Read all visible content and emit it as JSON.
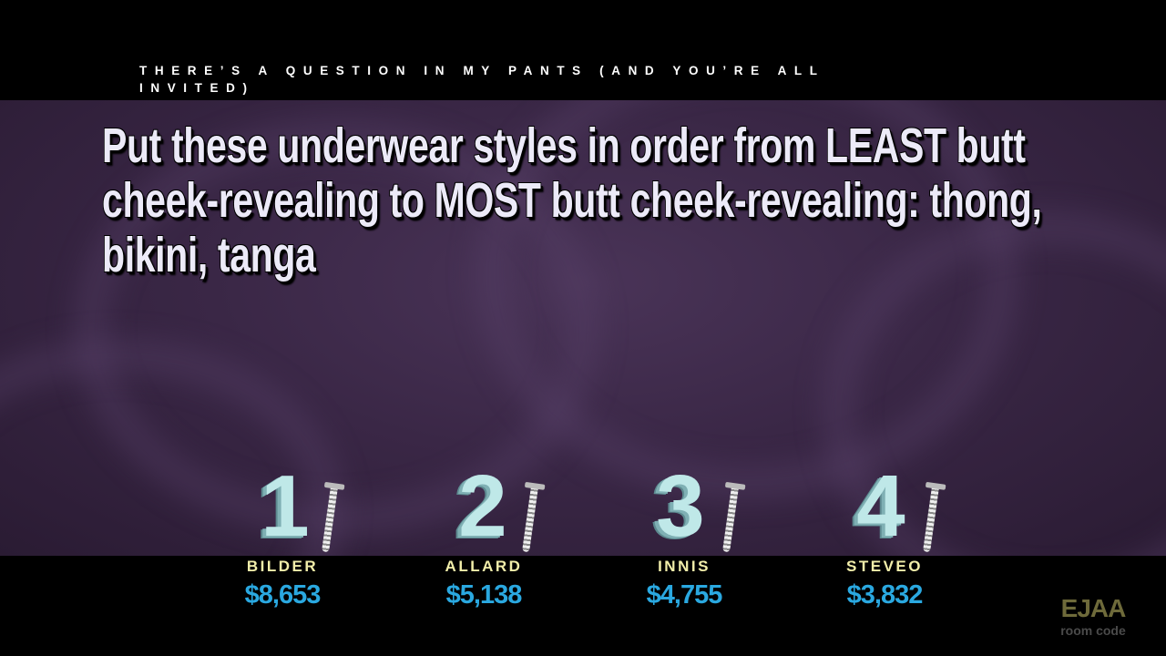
{
  "category": "There’s a question in my pants (and you’re all invited)",
  "question": "Put these underwear styles in order from LEAST butt cheek-revealing to MOST butt cheek-revealing: thong, bikini, tanga",
  "players": [
    {
      "number": "1",
      "name": "BILDER",
      "score": "$8,653"
    },
    {
      "number": "2",
      "name": "ALLARD",
      "score": "$5,138"
    },
    {
      "number": "3",
      "name": "INNIS",
      "score": "$4,755"
    },
    {
      "number": "4",
      "name": "STEVEO",
      "score": "$3,832"
    }
  ],
  "room": {
    "code": "EJAA",
    "label": "room code"
  },
  "colors": {
    "player_name": "#f2eeaa",
    "score": "#2aa8e0",
    "numeral": "#bfe8e8",
    "background": "#3a2746"
  }
}
